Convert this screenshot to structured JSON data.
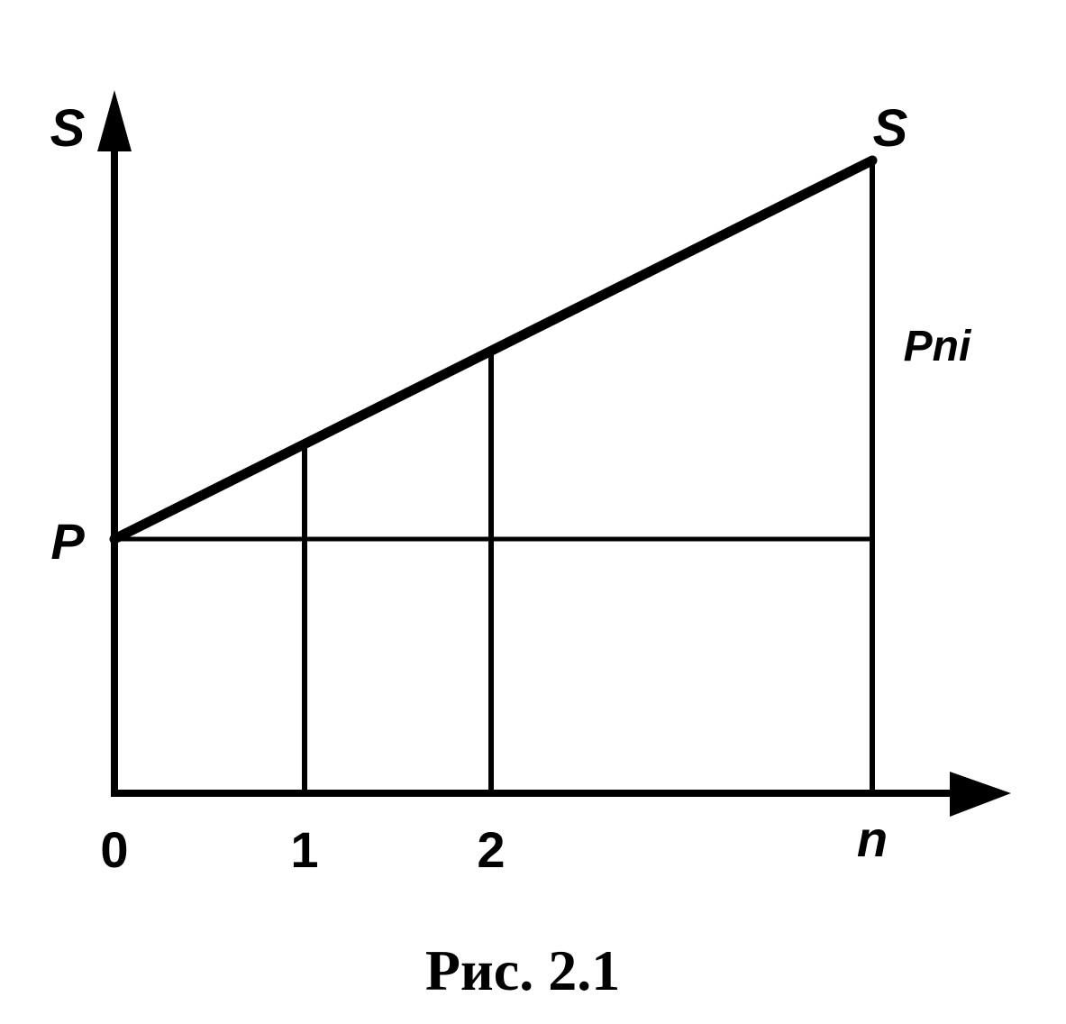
{
  "axes": {
    "y_label": "S",
    "x_ticks": [
      "0",
      "1",
      "2",
      "n"
    ]
  },
  "labels": {
    "start": "P",
    "end": "S",
    "segment": "Pni"
  },
  "caption": "Рис. 2.1"
}
